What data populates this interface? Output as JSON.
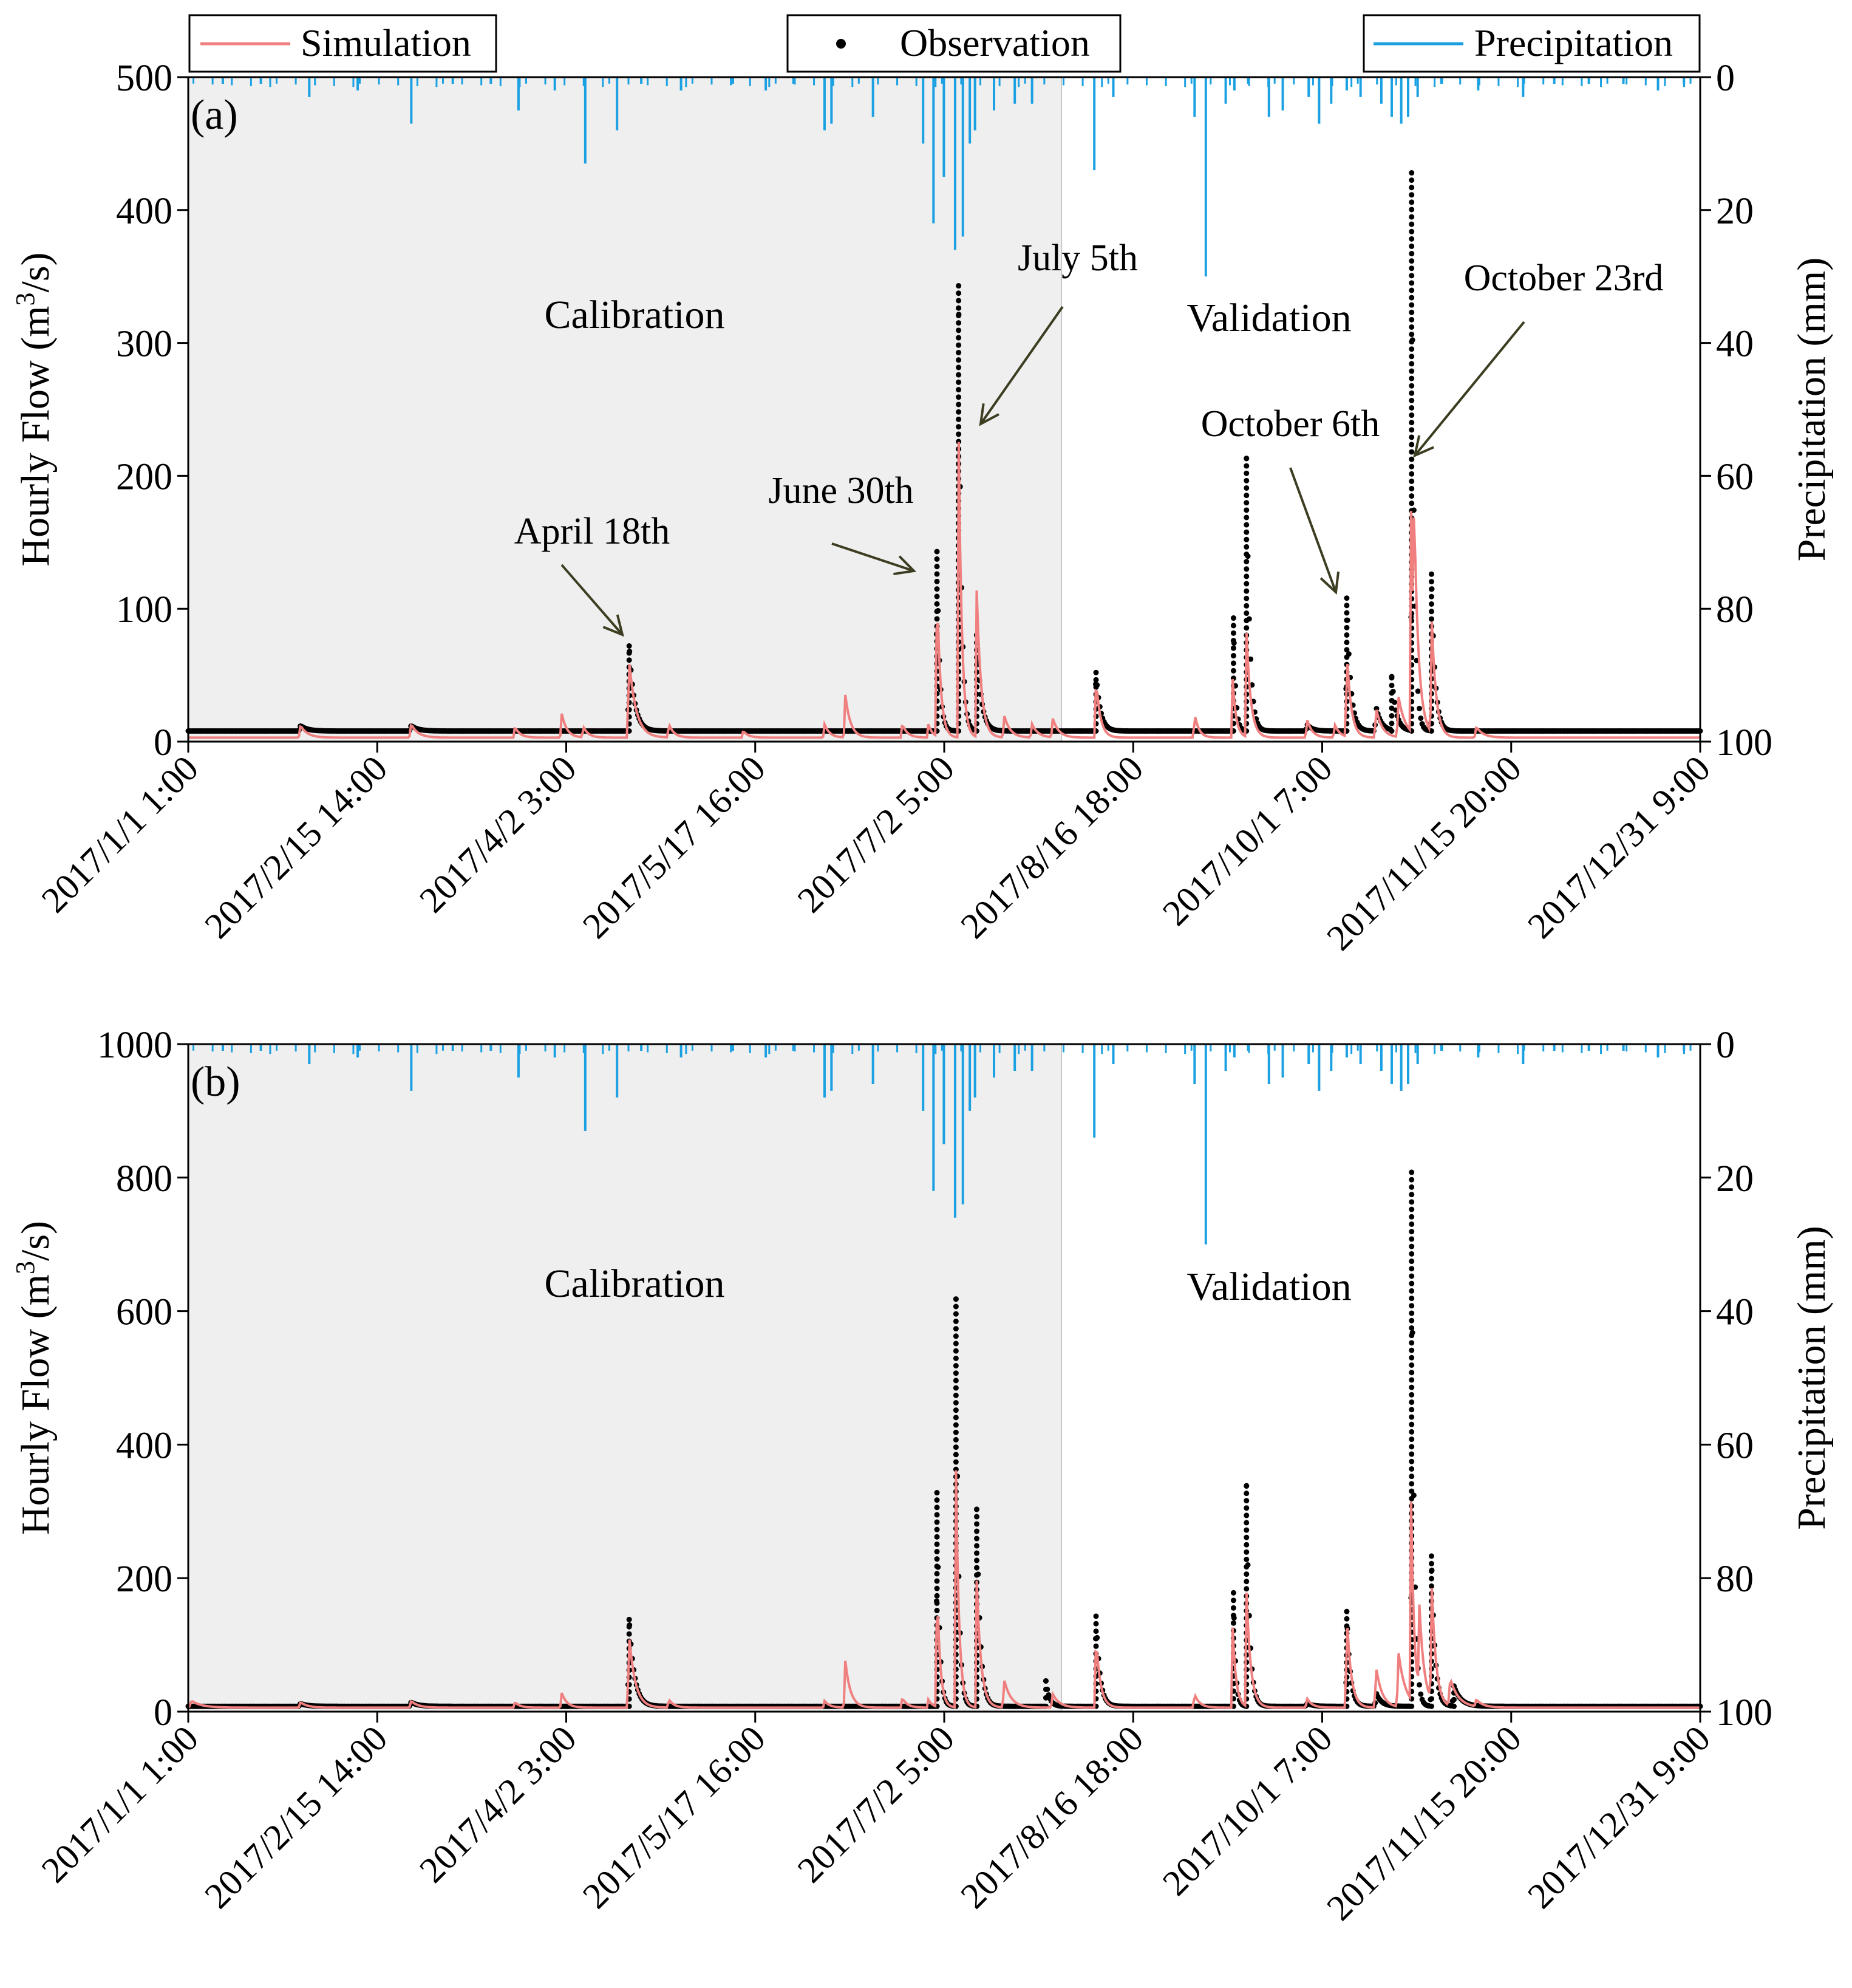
{
  "legend": {
    "simulation": "Simulation",
    "observation": "Observation",
    "precipitation": "Precipitation"
  },
  "colors": {
    "simulation": "#f08080",
    "observation": "#000000",
    "precipitation": "#1ba1e2",
    "calibration_bg": "#efefef"
  },
  "shared_x": {
    "tick_labels": [
      "2017/1/1 1:00",
      "2017/2/15 14:00",
      "2017/4/2 3:00",
      "2017/5/17 16:00",
      "2017/7/2 5:00",
      "2017/8/16 18:00",
      "2017/10/1 7:00",
      "2017/11/15 20:00",
      "2017/12/31 9:00"
    ],
    "tick_hours": [
      0,
      1093,
      2186,
      3279,
      4372,
      5465,
      6558,
      7651,
      8744
    ],
    "split_hour": 5050
  },
  "precipitation": {
    "ylabel": "Precipitation (mm)",
    "ylim": [
      100,
      0
    ],
    "ticks": [
      "0",
      "20",
      "40",
      "60",
      "80",
      "100"
    ],
    "events": [
      [
        700,
        3
      ],
      [
        1290,
        7
      ],
      [
        1910,
        5
      ],
      [
        2296,
        13
      ],
      [
        2480,
        8
      ],
      [
        3680,
        8
      ],
      [
        3720,
        7
      ],
      [
        3960,
        6
      ],
      [
        4250,
        10
      ],
      [
        4310,
        22
      ],
      [
        4370,
        15
      ],
      [
        4435,
        26
      ],
      [
        4480,
        24
      ],
      [
        4520,
        10
      ],
      [
        4550,
        8
      ],
      [
        4660,
        5
      ],
      [
        4780,
        4
      ],
      [
        4880,
        4
      ],
      [
        5240,
        14
      ],
      [
        5350,
        3
      ],
      [
        5820,
        6
      ],
      [
        5885,
        30
      ],
      [
        6000,
        4
      ],
      [
        6250,
        6
      ],
      [
        6330,
        5
      ],
      [
        6480,
        3
      ],
      [
        6540,
        7
      ],
      [
        6610,
        4
      ],
      [
        6780,
        3
      ],
      [
        6900,
        4
      ],
      [
        6960,
        6
      ],
      [
        7015,
        7
      ],
      [
        7055,
        6
      ],
      [
        7110,
        3
      ],
      [
        7720,
        3
      ],
      [
        8500,
        2
      ],
      [
        200,
        1
      ],
      [
        420,
        1
      ],
      [
        980,
        2
      ],
      [
        1530,
        1
      ],
      [
        1750,
        1
      ],
      [
        2120,
        2
      ],
      [
        2620,
        1
      ],
      [
        2850,
        2
      ],
      [
        3150,
        1
      ],
      [
        3340,
        2
      ],
      [
        3500,
        1
      ],
      [
        6050,
        2
      ],
      [
        6130,
        1
      ],
      [
        6700,
        2
      ],
      [
        7250,
        1
      ],
      [
        7460,
        2
      ],
      [
        7900,
        1
      ],
      [
        8100,
        1
      ],
      [
        8300,
        1
      ],
      [
        8650,
        1
      ]
    ]
  },
  "chart_data": [
    {
      "type": "line",
      "panel_label": "(a)",
      "ylabel": "Hourly Flow (m³/s)",
      "ylim": [
        0,
        500
      ],
      "yticks": [
        "0",
        "100",
        "200",
        "300",
        "400",
        "500"
      ],
      "period_labels": {
        "calibration": "Calibration",
        "validation": "Validation"
      },
      "annotations": [
        {
          "text": "April 18th",
          "hour": 2560,
          "value": 78
        },
        {
          "text": "June 30th",
          "hour": 4320,
          "value": 124
        },
        {
          "text": "July 5th",
          "hour": 4475,
          "value": 236
        },
        {
          "text": "October 6th",
          "hour": 6650,
          "value": 110
        },
        {
          "text": "October 23rd",
          "hour": 7120,
          "value": 212
        }
      ],
      "series": [
        {
          "name": "Simulation",
          "base": 3,
          "peaks": [
            [
              650,
              9,
              40
            ],
            [
              1290,
              10,
              40
            ],
            [
              1890,
              8,
              30
            ],
            [
              2160,
              18,
              30
            ],
            [
              2285,
              8,
              30
            ],
            [
              2550,
              58,
              40
            ],
            [
              2780,
              10,
              30
            ],
            [
              3210,
              5,
              30
            ],
            [
              3680,
              10,
              30
            ],
            [
              3800,
              32,
              30
            ],
            [
              4130,
              10,
              30
            ],
            [
              4280,
              10,
              25
            ],
            [
              4330,
              115,
              20
            ],
            [
              4455,
              235,
              18
            ],
            [
              4560,
              110,
              25
            ],
            [
              4720,
              16,
              35
            ],
            [
              4880,
              10,
              35
            ],
            [
              5000,
              14,
              35
            ],
            [
              5250,
              44,
              25
            ],
            [
              5820,
              18,
              25
            ],
            [
              6040,
              44,
              20
            ],
            [
              6120,
              78,
              25
            ],
            [
              6470,
              14,
              30
            ],
            [
              6630,
              10,
              30
            ],
            [
              6700,
              64,
              25
            ],
            [
              6870,
              22,
              35
            ],
            [
              7000,
              30,
              40
            ],
            [
              7070,
              185,
              18
            ],
            [
              7090,
              110,
              30
            ],
            [
              7190,
              90,
              25
            ],
            [
              7450,
              8,
              40
            ]
          ]
        },
        {
          "name": "Observation",
          "base": 8,
          "peaks": [
            [
              650,
              4,
              40
            ],
            [
              1290,
              4,
              40
            ],
            [
              2550,
              64,
              30
            ],
            [
              4330,
              135,
              15
            ],
            [
              4455,
              335,
              15
            ],
            [
              4560,
              72,
              25
            ],
            [
              5250,
              44,
              25
            ],
            [
              6045,
              85,
              12
            ],
            [
              6120,
              205,
              18
            ],
            [
              6470,
              5,
              30
            ],
            [
              6700,
              100,
              22
            ],
            [
              6870,
              18,
              30
            ],
            [
              6960,
              40,
              25
            ],
            [
              7075,
              420,
              14
            ],
            [
              7190,
              118,
              20
            ]
          ]
        }
      ]
    },
    {
      "type": "line",
      "panel_label": "(b)",
      "ylabel": "Hourly Flow (m³/s)",
      "ylim": [
        0,
        1000
      ],
      "yticks": [
        "0",
        "200",
        "400",
        "600",
        "800",
        "1000"
      ],
      "period_labels": {
        "calibration": "Calibration",
        "validation": "Validation"
      },
      "annotations": [],
      "series": [
        {
          "name": "Simulation",
          "base": 6,
          "peaks": [
            [
              20,
              10,
              60
            ],
            [
              650,
              8,
              40
            ],
            [
              1290,
              10,
              40
            ],
            [
              1890,
              8,
              30
            ],
            [
              2160,
              22,
              30
            ],
            [
              2550,
              108,
              35
            ],
            [
              2780,
              12,
              30
            ],
            [
              3680,
              10,
              30
            ],
            [
              3800,
              70,
              30
            ],
            [
              4130,
              14,
              30
            ],
            [
              4280,
              12,
              25
            ],
            [
              4330,
              190,
              18
            ],
            [
              4440,
              355,
              18
            ],
            [
              4560,
              190,
              25
            ],
            [
              4720,
              40,
              40
            ],
            [
              5000,
              20,
              40
            ],
            [
              5250,
              105,
              25
            ],
            [
              5820,
              20,
              30
            ],
            [
              6040,
              120,
              20
            ],
            [
              6120,
              170,
              25
            ],
            [
              6470,
              14,
              30
            ],
            [
              6700,
              140,
              25
            ],
            [
              6870,
              60,
              35
            ],
            [
              7000,
              80,
              40
            ],
            [
              7070,
              330,
              18
            ],
            [
              7120,
              130,
              30
            ],
            [
              7190,
              180,
              25
            ],
            [
              7300,
              40,
              50
            ],
            [
              7450,
              10,
              40
            ]
          ]
        },
        {
          "name": "Observation",
          "base": 8,
          "peaks": [
            [
              650,
              4,
              40
            ],
            [
              1290,
              6,
              40
            ],
            [
              2550,
              130,
              30
            ],
            [
              4330,
              320,
              14
            ],
            [
              4440,
              610,
              14
            ],
            [
              4560,
              295,
              20
            ],
            [
              4960,
              38,
              20
            ],
            [
              5250,
              135,
              22
            ],
            [
              6045,
              170,
              12
            ],
            [
              6120,
              330,
              18
            ],
            [
              6470,
              5,
              30
            ],
            [
              6700,
              142,
              20
            ],
            [
              6870,
              20,
              30
            ],
            [
              7075,
              800,
              14
            ],
            [
              7190,
              225,
              20
            ],
            [
              7320,
              30,
              40
            ]
          ]
        }
      ]
    }
  ]
}
